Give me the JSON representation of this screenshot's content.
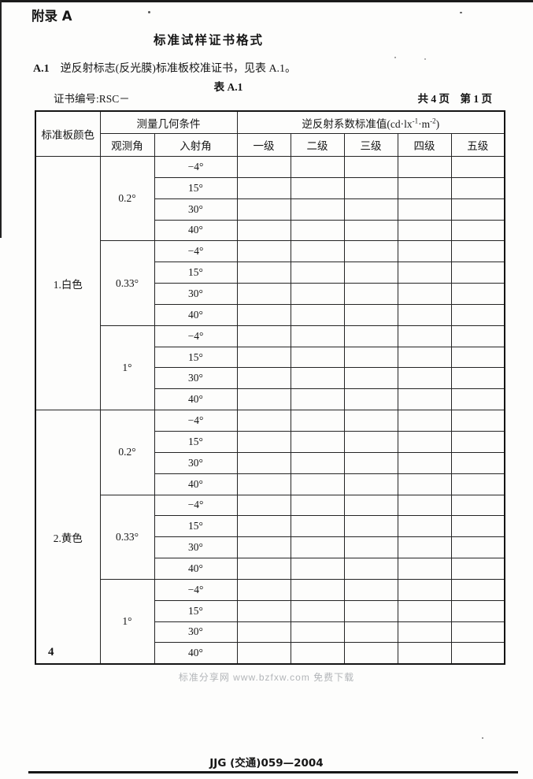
{
  "page": {
    "appendix_label": "附录 A",
    "title": "标准试样证书格式",
    "clause_label": "A.1",
    "clause_text": "逆反射标志(反光膜)标准板校准证书，见表 A.1。",
    "table_caption": "表 A.1",
    "cert_no": "证书编号:RSC－",
    "pagination": "共 4 页　第 1 页",
    "page_number": "4",
    "watermark": "标准分享网 www.bzfxw.com 免费下载",
    "footer": "JJG (交通)059—2004",
    "watermark_color": "#b2b5b8",
    "ink_color": "#161616"
  },
  "table": {
    "header": {
      "color_col": "标准板颜色",
      "geometry_group": "测量几何条件",
      "observation": "观测角",
      "incidence": "入射角",
      "coeff_prefix": "逆反射系数标准值(cd·lx",
      "coeff_sup1": "-1",
      "coeff_mid": "·m",
      "coeff_sup2": "-2",
      "coeff_suffix": ")",
      "grades": [
        "一级",
        "二级",
        "三级",
        "四级",
        "五级"
      ]
    },
    "sections": [
      {
        "color": "1.白色",
        "groups": [
          {
            "observation": "0.2°",
            "incidence": [
              "−4°",
              "15°",
              "30°",
              "40°"
            ]
          },
          {
            "observation": "0.33°",
            "incidence": [
              "−4°",
              "15°",
              "30°",
              "40°"
            ]
          },
          {
            "observation": "1°",
            "incidence": [
              "−4°",
              "15°",
              "30°",
              "40°"
            ]
          }
        ]
      },
      {
        "color": "2.黄色",
        "groups": [
          {
            "observation": "0.2°",
            "incidence": [
              "−4°",
              "15°",
              "30°",
              "40°"
            ]
          },
          {
            "observation": "0.33°",
            "incidence": [
              "−4°",
              "15°",
              "30°",
              "40°"
            ]
          },
          {
            "observation": "1°",
            "incidence": [
              "−4°",
              "15°",
              "30°",
              "40°"
            ]
          }
        ]
      }
    ],
    "value_cells_empty": ""
  }
}
